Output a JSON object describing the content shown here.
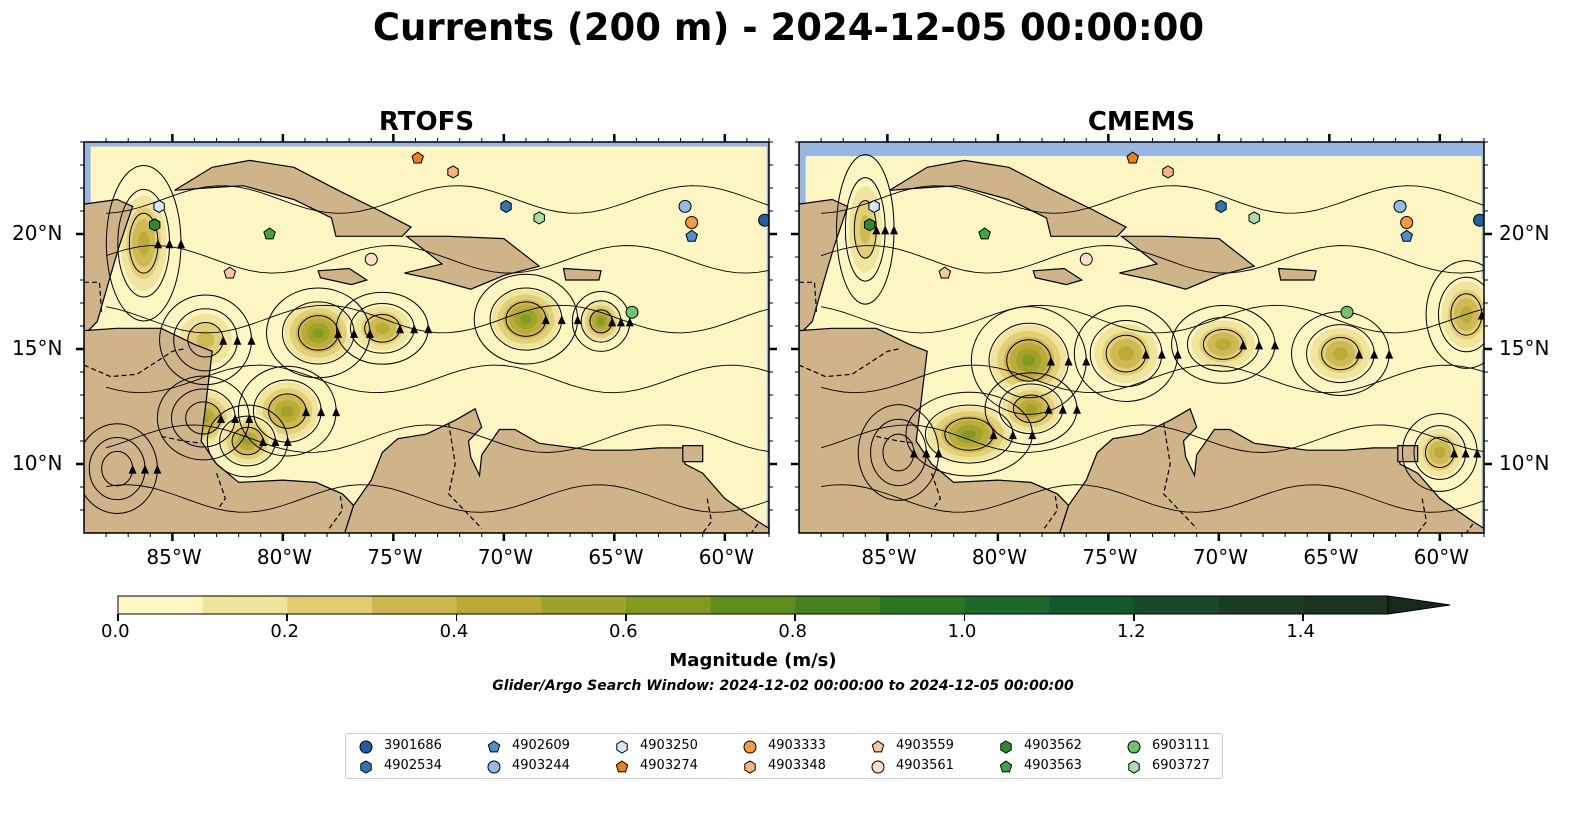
{
  "title": "Currents (200 m) - 2024-12-05 00:00:00",
  "panels": [
    {
      "title": "RTOFS"
    },
    {
      "title": "CMEMS"
    }
  ],
  "axes": {
    "lon_labels": [
      "85°W",
      "80°W",
      "75°W",
      "70°W",
      "65°W",
      "60°W"
    ],
    "lat_labels": [
      "20°N",
      "15°N",
      "10°N"
    ],
    "lon_range": [
      -89,
      -58
    ],
    "lat_range": [
      7,
      24
    ]
  },
  "colorbar": {
    "label": "Magnitude (m/s)",
    "ticks": [
      "0.0",
      "0.2",
      "0.4",
      "0.6",
      "0.8",
      "1.0",
      "1.2",
      "1.4"
    ],
    "range": [
      0,
      1.5
    ],
    "extend": "max",
    "colors": [
      "#fdf6c2",
      "#f0e39a",
      "#e0cd72",
      "#cdb64e",
      "#b8aa34",
      "#9da22a",
      "#7f9a1e",
      "#5e8d1c",
      "#44821e",
      "#2c7522",
      "#1a6a2a",
      "#11592c",
      "#174a2a",
      "#1c3d25",
      "#1b3320"
    ]
  },
  "search_window": "Glider/Argo Search Window: 2024-12-02 00:00:00 to 2024-12-05 00:00:00",
  "colors": {
    "ocean_blue": "#97b6e1",
    "land": "#cfb48a"
  },
  "platforms": [
    {
      "id": "3901686",
      "marker": "circle",
      "color": "#1f5fa6",
      "lon": -58.2,
      "lat": 20.6
    },
    {
      "id": "4902534",
      "marker": "hexagon",
      "color": "#2f77bd",
      "lon": -69.9,
      "lat": 21.2
    },
    {
      "id": "4902609",
      "marker": "pentagon",
      "color": "#4a8fd1",
      "lon": -61.5,
      "lat": 19.9
    },
    {
      "id": "4903244",
      "marker": "circle",
      "color": "#8fbce8",
      "lon": -61.8,
      "lat": 21.2
    },
    {
      "id": "4903250",
      "marker": "hexagon",
      "color": "#d2e8f8",
      "lon": -85.6,
      "lat": 21.2
    },
    {
      "id": "4903274",
      "marker": "pentagon",
      "color": "#f07f16",
      "lon": -73.9,
      "lat": 23.3
    },
    {
      "id": "4903333",
      "marker": "circle",
      "color": "#f59a40",
      "lon": -61.5,
      "lat": 20.5
    },
    {
      "id": "4903348",
      "marker": "hexagon",
      "color": "#f8b57a",
      "lon": -72.3,
      "lat": 22.7
    },
    {
      "id": "4903559",
      "marker": "pentagon",
      "color": "#f8c79e",
      "lon": -82.4,
      "lat": 18.3
    },
    {
      "id": "4903561",
      "marker": "circle",
      "color": "#fde0c6",
      "lon": -76.0,
      "lat": 18.9
    },
    {
      "id": "4903562",
      "marker": "hexagon",
      "color": "#2e8b2e",
      "lon": -85.8,
      "lat": 20.4
    },
    {
      "id": "4903563",
      "marker": "pentagon",
      "color": "#3da83d",
      "lon": -80.6,
      "lat": 20.0
    },
    {
      "id": "6903111",
      "marker": "circle",
      "color": "#6cc56c",
      "lon": -64.2,
      "lat": 16.6
    },
    {
      "id": "6903727",
      "marker": "hexagon",
      "color": "#a6e0a6",
      "lon": -68.4,
      "lat": 20.7
    }
  ]
}
